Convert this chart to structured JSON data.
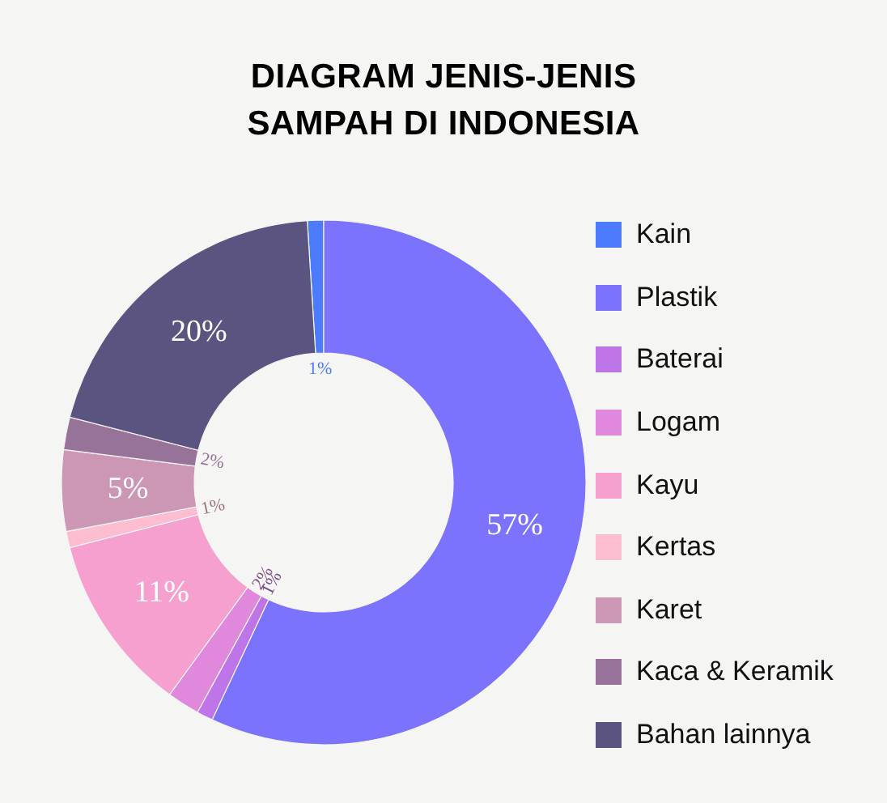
{
  "chart_data": {
    "type": "donut",
    "title": "DIAGRAM JENIS-JENIS SAMPAH DI INDONESIA",
    "categories": [
      "Kain",
      "Plastik",
      "Baterai",
      "Logam",
      "Kayu",
      "Kertas",
      "Karet",
      "Kaca & Keramik",
      "Bahan lainnya"
    ],
    "values": [
      1,
      57,
      1,
      2,
      11,
      1,
      5,
      2,
      20
    ],
    "colors": [
      "#4d7bfd",
      "#7b73fe",
      "#bd75e8",
      "#e088db",
      "#f6a0cf",
      "#fdbdd0",
      "#cc96b5",
      "#987399",
      "#5c5480"
    ],
    "value_labels": [
      "1%",
      "57%",
      "1%",
      "2%",
      "11%",
      "1%",
      "5%",
      "2%",
      "20%"
    ],
    "legend": "right"
  }
}
